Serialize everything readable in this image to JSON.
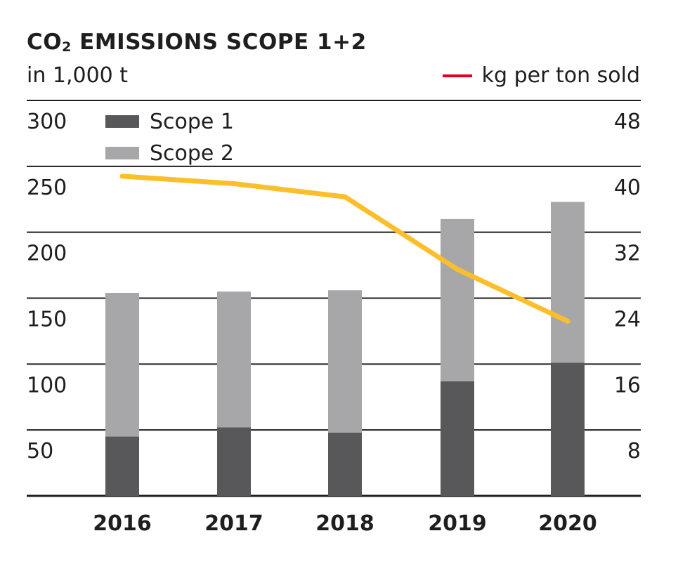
{
  "title_main": "CO",
  "title_sub": "2",
  "title_rest": " EMISSIONS SCOPE 1+2",
  "subtitle": "in 1,000 t",
  "colors": {
    "scope1": "#58585a",
    "scope2": "#a7a7a9",
    "line": "#fcbf2b",
    "line_legend": "#e2001a",
    "grid": "#1e1e1e"
  },
  "chart_data": {
    "type": "bar",
    "stacked": true,
    "title": "CO2 EMISSIONS SCOPE 1+2",
    "ylabel_left": "in 1,000 t",
    "categories": [
      "2016",
      "2017",
      "2018",
      "2019",
      "2020"
    ],
    "series": [
      {
        "name": "Scope 1",
        "axis": "left",
        "values": [
          45,
          52,
          48,
          87,
          101
        ]
      },
      {
        "name": "Scope 2",
        "axis": "left",
        "values": [
          109,
          103,
          108,
          123,
          122
        ]
      }
    ],
    "line_series": {
      "name": "kg per ton sold",
      "axis": "right",
      "values": [
        38.8,
        37.9,
        36.3,
        27.5,
        21.2
      ]
    },
    "ylim_left": [
      0,
      300
    ],
    "yticks_left": [
      {
        "value": 50,
        "label": "50"
      },
      {
        "value": 100,
        "label": "100"
      },
      {
        "value": 150,
        "label": "150"
      },
      {
        "value": 200,
        "label": "200"
      },
      {
        "value": 250,
        "label": "250"
      },
      {
        "value": 300,
        "label": "300"
      }
    ],
    "ylim_right": [
      0,
      48
    ],
    "yticks_right": [
      {
        "value": 8,
        "label": "8"
      },
      {
        "value": 16,
        "label": "16"
      },
      {
        "value": 24,
        "label": "24"
      },
      {
        "value": 32,
        "label": "32"
      },
      {
        "value": 40,
        "label": "40"
      },
      {
        "value": 48,
        "label": "48"
      }
    ],
    "legend": [
      {
        "name": "Scope 1"
      },
      {
        "name": "Scope 2"
      }
    ],
    "line_legend": "kg per ton sold",
    "grid": true,
    "legend_position": "top-left (bars), top-right (line)"
  }
}
